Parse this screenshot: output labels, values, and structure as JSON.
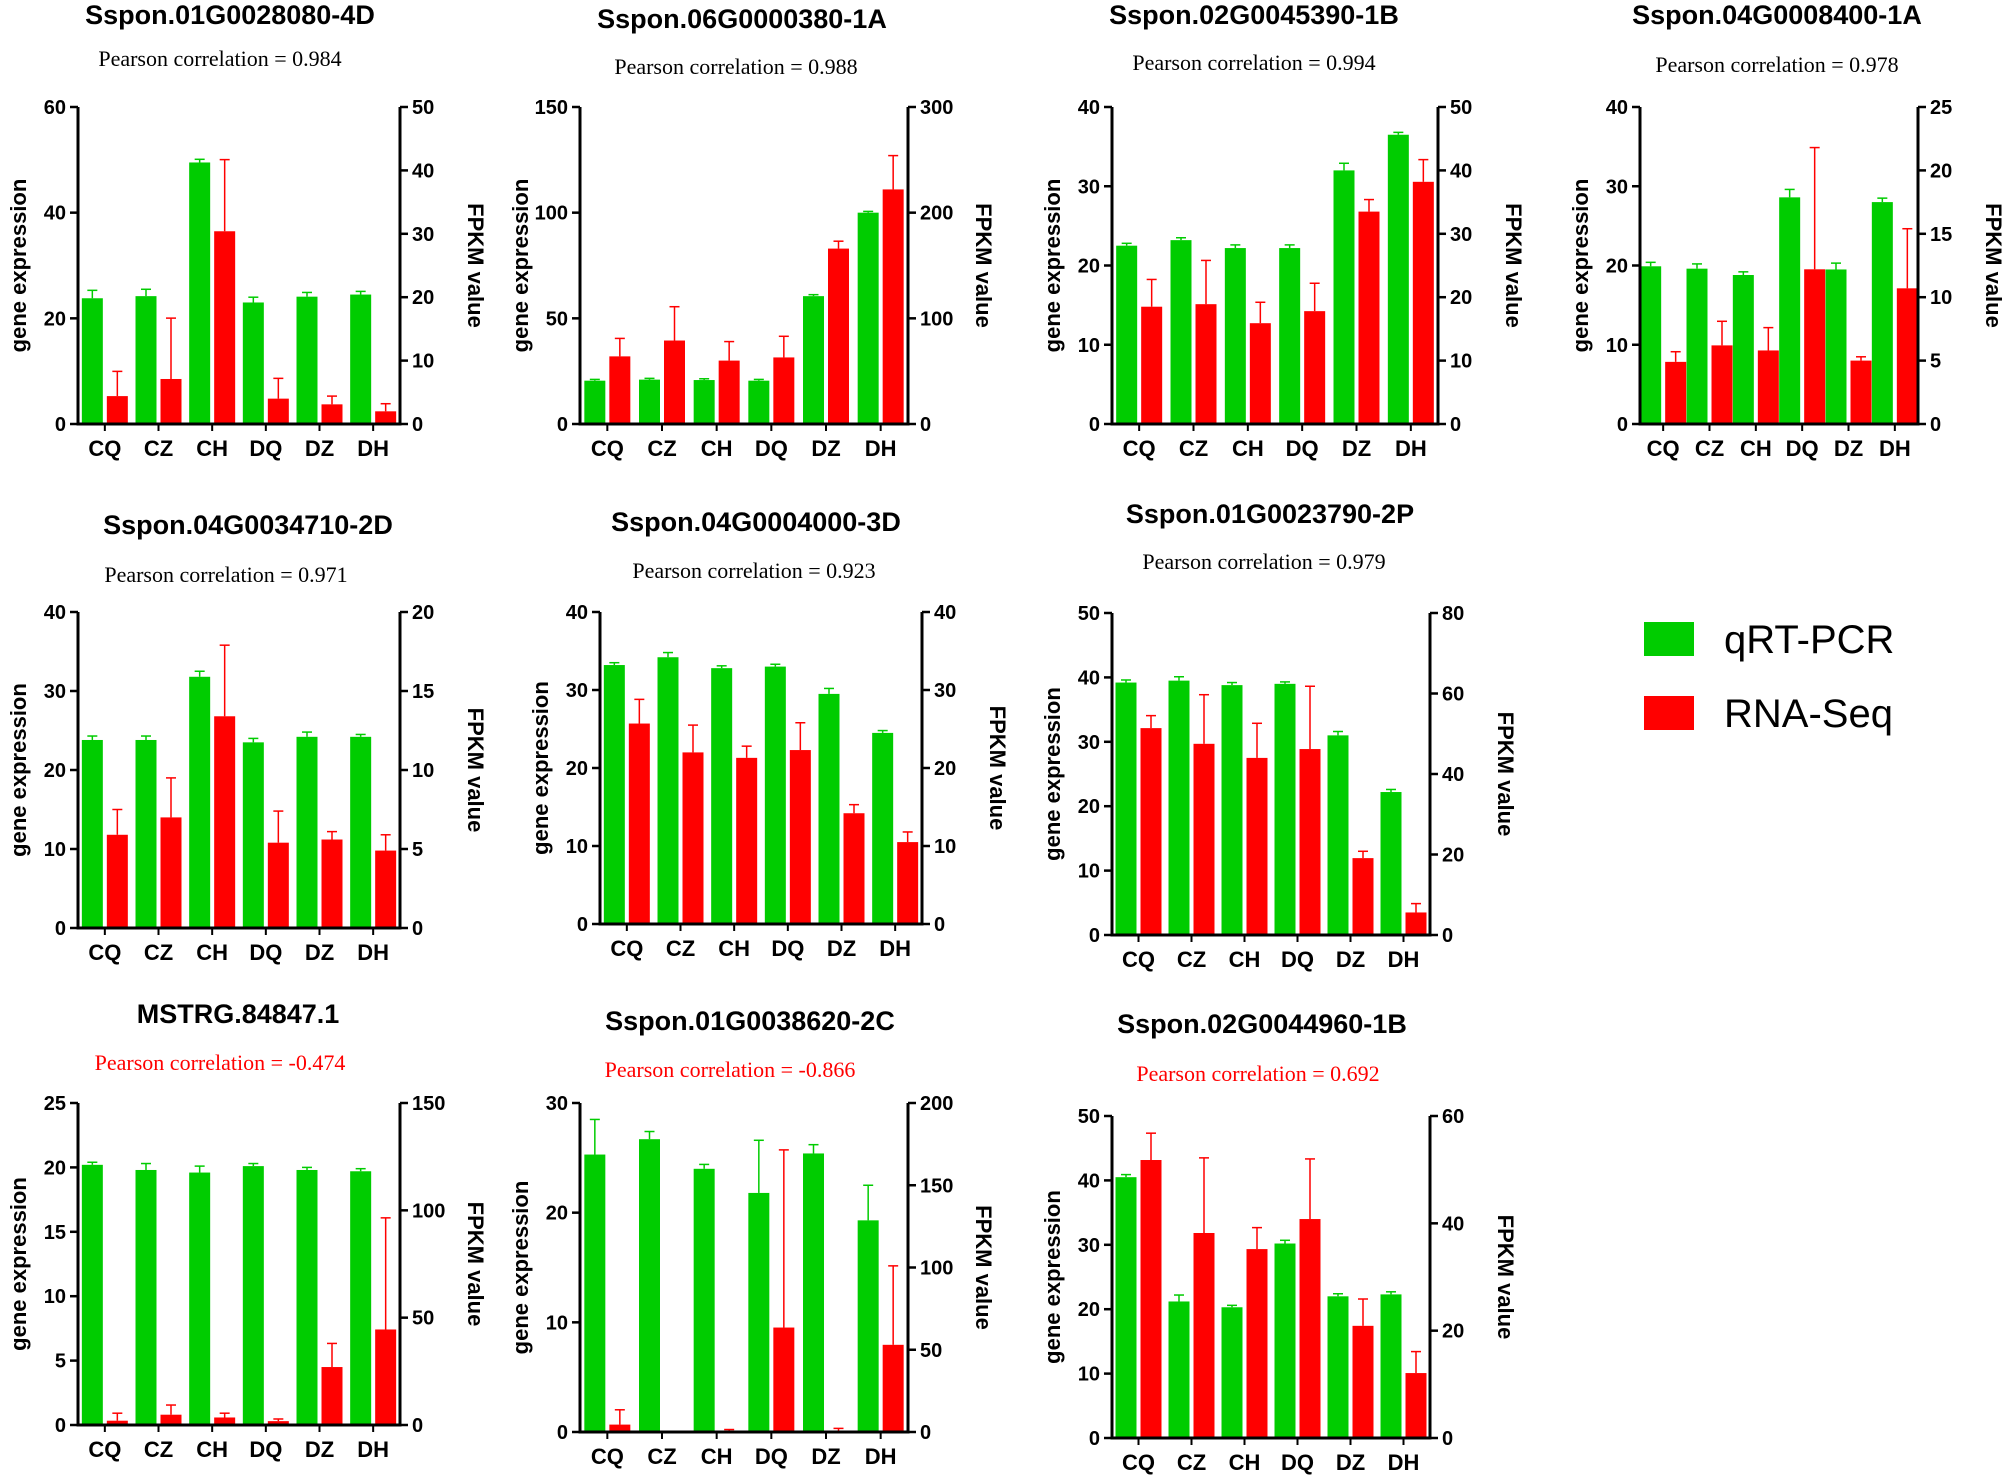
{
  "colors": {
    "qrt": "#00CC00",
    "rna": "#FF0000",
    "corr_normal": "#000000",
    "corr_highlight": "#FF0000"
  },
  "legend": {
    "items": [
      {
        "name": "qRT-PCR",
        "color": "#00CC00"
      },
      {
        "name": "RNA-Seq",
        "color": "#FF0000"
      }
    ]
  },
  "chart_data": [
    {
      "type": "bar",
      "title": "Sspon.01G0028080-4D",
      "correlation": "Pearson correlation = 0.984",
      "correlation_color": "#000000",
      "categories": [
        "CQ",
        "CZ",
        "CH",
        "DQ",
        "DZ",
        "DH"
      ],
      "ylabel_left": "gene expression",
      "ylabel_right": "FPKM value",
      "ylim_left": [
        0,
        60
      ],
      "yticks_left": [
        0,
        20,
        40,
        60
      ],
      "ylim_right": [
        0,
        50
      ],
      "yticks_right": [
        0,
        10,
        20,
        30,
        40,
        50
      ],
      "series": [
        {
          "name": "qRT-PCR",
          "axis": "left",
          "values": [
            23.8,
            24.2,
            49.5,
            23.0,
            24.1,
            24.5
          ],
          "errors": [
            1.5,
            1.3,
            0.6,
            1.0,
            0.8,
            0.6
          ]
        },
        {
          "name": "RNA-Seq",
          "axis": "right",
          "values": [
            4.4,
            7.1,
            30.4,
            4.0,
            3.1,
            2.0
          ],
          "errors": [
            3.9,
            9.6,
            11.3,
            3.2,
            1.3,
            1.2
          ]
        }
      ]
    },
    {
      "type": "bar",
      "title": "Sspon.06G0000380-1A",
      "correlation": "Pearson correlation = 0.988",
      "correlation_color": "#000000",
      "categories": [
        "CQ",
        "CZ",
        "CH",
        "DQ",
        "DZ",
        "DH"
      ],
      "ylabel_left": "gene expression",
      "ylabel_right": "FPKM value",
      "ylim_left": [
        0,
        150
      ],
      "yticks_left": [
        0,
        50,
        100,
        150
      ],
      "ylim_right": [
        0,
        300
      ],
      "yticks_right": [
        0,
        100,
        200,
        300
      ],
      "series": [
        {
          "name": "qRT-PCR",
          "axis": "left",
          "values": [
            20.5,
            21.0,
            20.8,
            20.5,
            60.5,
            100.0
          ],
          "errors": [
            0.6,
            0.6,
            0.6,
            0.6,
            0.7,
            0.6
          ]
        },
        {
          "name": "RNA-Seq",
          "axis": "right",
          "values": [
            64,
            79,
            60,
            63,
            166,
            222
          ],
          "errors": [
            17,
            32,
            18,
            20,
            7,
            32
          ]
        }
      ]
    },
    {
      "type": "bar",
      "title": "Sspon.02G0045390-1B",
      "correlation": "Pearson correlation = 0.994",
      "correlation_color": "#000000",
      "categories": [
        "CQ",
        "CZ",
        "CH",
        "DQ",
        "DZ",
        "DH"
      ],
      "ylabel_left": "gene expression",
      "ylabel_right": "FPKM value",
      "ylim_left": [
        0,
        40
      ],
      "yticks_left": [
        0,
        10,
        20,
        30,
        40
      ],
      "ylim_right": [
        0,
        50
      ],
      "yticks_right": [
        0,
        10,
        20,
        30,
        40,
        50
      ],
      "series": [
        {
          "name": "qRT-PCR",
          "axis": "left",
          "values": [
            22.5,
            23.2,
            22.2,
            22.2,
            32.0,
            36.5
          ],
          "errors": [
            0.3,
            0.3,
            0.4,
            0.4,
            0.9,
            0.3
          ]
        },
        {
          "name": "RNA-Seq",
          "axis": "right",
          "values": [
            18.5,
            18.9,
            15.9,
            17.8,
            33.5,
            38.2
          ],
          "errors": [
            4.3,
            6.9,
            3.3,
            4.4,
            1.9,
            3.5
          ]
        }
      ]
    },
    {
      "type": "bar",
      "title": "Sspon.04G0008400-1A",
      "correlation": "Pearson correlation = 0.978",
      "correlation_color": "#000000",
      "categories": [
        "CQ",
        "CZ",
        "CH",
        "DQ",
        "DZ",
        "DH"
      ],
      "ylabel_left": "gene expression",
      "ylabel_right": "FPKM value",
      "ylim_left": [
        0,
        40
      ],
      "yticks_left": [
        0,
        10,
        20,
        30,
        40
      ],
      "ylim_right": [
        0,
        25
      ],
      "yticks_right": [
        0,
        5,
        10,
        15,
        20,
        25
      ],
      "series": [
        {
          "name": "qRT-PCR",
          "axis": "left",
          "values": [
            19.9,
            19.6,
            18.8,
            28.6,
            19.5,
            28.0
          ],
          "errors": [
            0.5,
            0.6,
            0.4,
            1.0,
            0.8,
            0.5
          ]
        },
        {
          "name": "RNA-Seq",
          "axis": "right",
          "values": [
            4.9,
            6.2,
            5.8,
            12.2,
            5.0,
            10.7
          ],
          "errors": [
            0.8,
            1.9,
            1.8,
            9.6,
            0.3,
            4.7
          ]
        }
      ]
    },
    {
      "type": "bar",
      "title": "Sspon.04G0034710-2D",
      "correlation": "Pearson correlation = 0.971",
      "correlation_color": "#000000",
      "categories": [
        "CQ",
        "CZ",
        "CH",
        "DQ",
        "DZ",
        "DH"
      ],
      "ylabel_left": "gene expression",
      "ylabel_right": "FPKM value",
      "ylim_left": [
        0,
        40
      ],
      "yticks_left": [
        0,
        10,
        20,
        30,
        40
      ],
      "ylim_right": [
        0,
        20
      ],
      "yticks_right": [
        0,
        5,
        10,
        15,
        20
      ],
      "series": [
        {
          "name": "qRT-PCR",
          "axis": "left",
          "values": [
            23.8,
            23.8,
            31.8,
            23.5,
            24.2,
            24.2
          ],
          "errors": [
            0.5,
            0.5,
            0.7,
            0.5,
            0.6,
            0.3
          ]
        },
        {
          "name": "RNA-Seq",
          "axis": "right",
          "values": [
            5.9,
            7.0,
            13.4,
            5.4,
            5.6,
            4.9
          ],
          "errors": [
            1.6,
            2.5,
            4.5,
            2.0,
            0.5,
            1.0
          ]
        }
      ]
    },
    {
      "type": "bar",
      "title": "Sspon.04G0004000-3D",
      "correlation": "Pearson correlation = 0.923",
      "correlation_color": "#000000",
      "categories": [
        "CQ",
        "CZ",
        "CH",
        "DQ",
        "DZ",
        "DH"
      ],
      "ylabel_left": "gene expression",
      "ylabel_right": "FPKM value",
      "ylim_left": [
        0,
        40
      ],
      "yticks_left": [
        0,
        10,
        20,
        30,
        40
      ],
      "ylim_right": [
        0,
        40
      ],
      "yticks_right": [
        0,
        10,
        20,
        30,
        40
      ],
      "series": [
        {
          "name": "qRT-PCR",
          "axis": "left",
          "values": [
            33.2,
            34.2,
            32.8,
            33.0,
            29.5,
            24.5
          ],
          "errors": [
            0.3,
            0.6,
            0.3,
            0.3,
            0.7,
            0.3
          ]
        },
        {
          "name": "RNA-Seq",
          "axis": "right",
          "values": [
            25.7,
            22.0,
            21.3,
            22.3,
            14.2,
            10.5
          ],
          "errors": [
            3.1,
            3.5,
            1.5,
            3.5,
            1.1,
            1.3
          ]
        }
      ]
    },
    {
      "type": "bar",
      "title": "Sspon.01G0023790-2P",
      "correlation": "Pearson correlation = 0.979",
      "correlation_color": "#000000",
      "categories": [
        "CQ",
        "CZ",
        "CH",
        "DQ",
        "DZ",
        "DH"
      ],
      "ylabel_left": "gene expression",
      "ylabel_right": "FPKM value",
      "ylim_left": [
        0,
        50
      ],
      "yticks_left": [
        0,
        10,
        20,
        30,
        40,
        50
      ],
      "ylim_right": [
        0,
        80
      ],
      "yticks_right": [
        0,
        20,
        40,
        60,
        80
      ],
      "series": [
        {
          "name": "qRT-PCR",
          "axis": "left",
          "values": [
            39.2,
            39.5,
            38.8,
            39.0,
            31.0,
            22.2
          ],
          "errors": [
            0.4,
            0.6,
            0.4,
            0.3,
            0.6,
            0.4
          ]
        },
        {
          "name": "RNA-Seq",
          "axis": "right",
          "values": [
            51.4,
            47.5,
            44.0,
            46.2,
            19.1,
            5.6
          ],
          "errors": [
            3.1,
            12.2,
            8.6,
            15.6,
            1.7,
            2.2
          ]
        }
      ]
    },
    {
      "type": "bar",
      "title": "MSTRG.84847.1",
      "correlation": "Pearson correlation = -0.474",
      "correlation_color": "#FF0000",
      "categories": [
        "CQ",
        "CZ",
        "CH",
        "DQ",
        "DZ",
        "DH"
      ],
      "ylabel_left": "gene expression",
      "ylabel_right": "FPKM value",
      "ylim_left": [
        0,
        25
      ],
      "yticks_left": [
        0,
        5,
        10,
        15,
        20,
        25
      ],
      "ylim_right": [
        0,
        150
      ],
      "yticks_right": [
        0,
        50,
        100,
        150
      ],
      "series": [
        {
          "name": "qRT-PCR",
          "axis": "left",
          "values": [
            20.2,
            19.8,
            19.6,
            20.1,
            19.8,
            19.7
          ],
          "errors": [
            0.2,
            0.5,
            0.5,
            0.2,
            0.2,
            0.2
          ]
        },
        {
          "name": "RNA-Seq",
          "axis": "right",
          "values": [
            2.0,
            4.8,
            3.5,
            1.8,
            27.0,
            44.5
          ],
          "errors": [
            3.5,
            4.5,
            2.0,
            1.0,
            11.0,
            52.0
          ]
        }
      ]
    },
    {
      "type": "bar",
      "title": "Sspon.01G0038620-2C",
      "correlation": "Pearson correlation = -0.866",
      "correlation_color": "#FF0000",
      "categories": [
        "CQ",
        "CZ",
        "CH",
        "DQ",
        "DZ",
        "DH"
      ],
      "ylabel_left": "gene expression",
      "ylabel_right": "FPKM value",
      "ylim_left": [
        0,
        30
      ],
      "yticks_left": [
        0,
        10,
        20,
        30
      ],
      "ylim_right": [
        0,
        200
      ],
      "yticks_right": [
        0,
        50,
        100,
        150,
        200
      ],
      "series": [
        {
          "name": "qRT-PCR",
          "axis": "left",
          "values": [
            25.3,
            26.7,
            24.0,
            21.8,
            25.4,
            19.3
          ],
          "errors": [
            3.2,
            0.7,
            0.4,
            4.8,
            0.8,
            3.2
          ]
        },
        {
          "name": "RNA-Seq",
          "axis": "right",
          "values": [
            4.5,
            0.2,
            0.7,
            63.5,
            0.7,
            53.0
          ],
          "errors": [
            9.0,
            0.0,
            0.8,
            108.0,
            1.5,
            48.0
          ]
        }
      ]
    },
    {
      "type": "bar",
      "title": "Sspon.02G0044960-1B",
      "correlation": "Pearson correlation = 0.692",
      "correlation_color": "#FF0000",
      "categories": [
        "CQ",
        "CZ",
        "CH",
        "DQ",
        "DZ",
        "DH"
      ],
      "ylabel_left": "gene expression",
      "ylabel_right": "FPKM value",
      "ylim_left": [
        0,
        50
      ],
      "yticks_left": [
        0,
        10,
        20,
        30,
        40,
        50
      ],
      "ylim_right": [
        0,
        60
      ],
      "yticks_right": [
        0,
        20,
        40,
        60
      ],
      "series": [
        {
          "name": "qRT-PCR",
          "axis": "left",
          "values": [
            40.5,
            21.2,
            20.3,
            30.2,
            22.0,
            22.3
          ],
          "errors": [
            0.4,
            1.0,
            0.3,
            0.5,
            0.4,
            0.4
          ]
        },
        {
          "name": "RNA-Seq",
          "axis": "right",
          "values": [
            51.8,
            38.2,
            35.2,
            40.8,
            20.9,
            12.1
          ],
          "errors": [
            5.0,
            14.0,
            4.0,
            11.2,
            5.0,
            4.0
          ]
        }
      ]
    }
  ]
}
